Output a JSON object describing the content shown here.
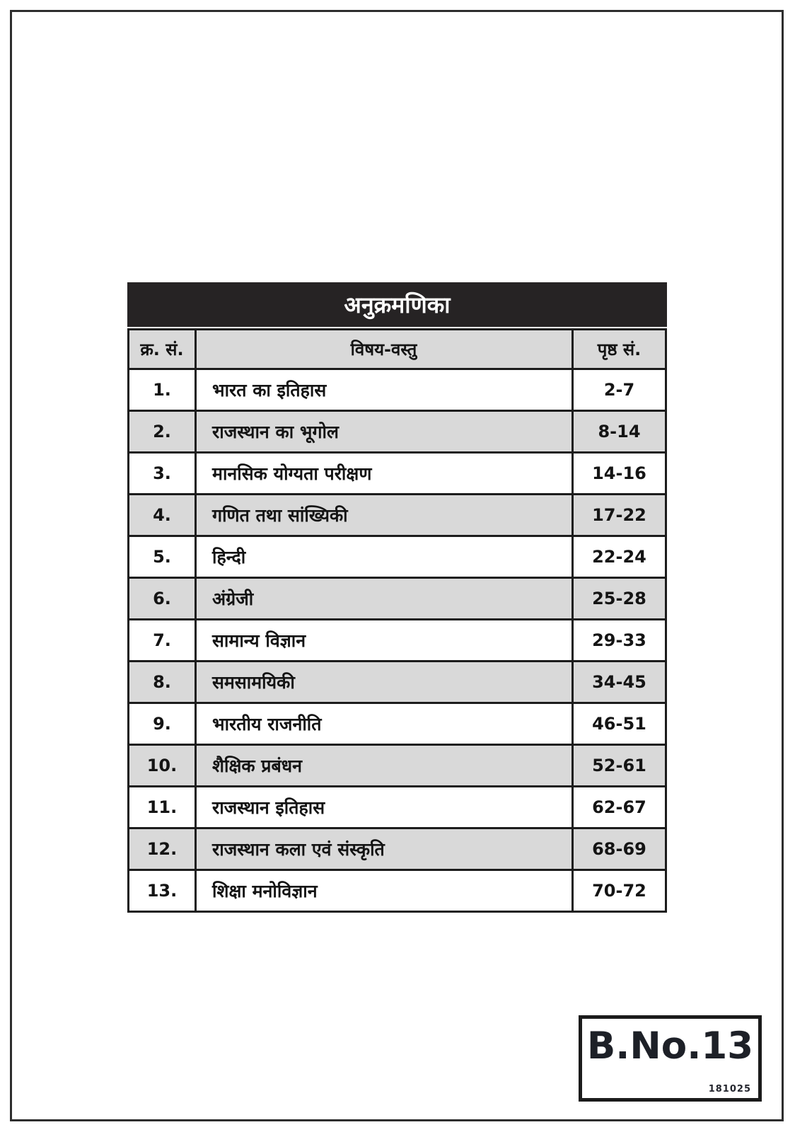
{
  "document": {
    "title": "अनुक्रमणिका",
    "table": {
      "headers": {
        "sno": "क्र. सं.",
        "subject": "विषय-वस्तु",
        "pages": "पृष्ठ सं."
      },
      "rows": [
        {
          "sno": "1.",
          "subject": "भारत का इतिहास",
          "pages": "2-7"
        },
        {
          "sno": "2.",
          "subject": "राजस्थान का भूगोल",
          "pages": "8-14"
        },
        {
          "sno": "3.",
          "subject": "मानसिक योग्यता परीक्षण",
          "pages": "14-16"
        },
        {
          "sno": "4.",
          "subject": "गणित तथा सांख्यिकी",
          "pages": "17-22"
        },
        {
          "sno": "5.",
          "subject": "हिन्दी",
          "pages": "22-24"
        },
        {
          "sno": "6.",
          "subject": "अंग्रेजी",
          "pages": "25-28"
        },
        {
          "sno": "7.",
          "subject": "सामान्य विज्ञान",
          "pages": "29-33"
        },
        {
          "sno": "8.",
          "subject": "समसामयिकी",
          "pages": "34-45"
        },
        {
          "sno": "9.",
          "subject": "भारतीय राजनीति",
          "pages": "46-51"
        },
        {
          "sno": "10.",
          "subject": "शैक्षिक प्रबंधन",
          "pages": "52-61"
        },
        {
          "sno": "11.",
          "subject": "राजस्थान इतिहास",
          "pages": "62-67"
        },
        {
          "sno": "12.",
          "subject": "राजस्थान कला एवं संस्कृति",
          "pages": "68-69"
        },
        {
          "sno": "13.",
          "subject": "शिक्षा मनोविज्ञान",
          "pages": "70-72"
        }
      ]
    },
    "book_number_box": {
      "label": "B.No.13",
      "code": "181025"
    },
    "colors": {
      "title_bar": "#262324",
      "row_alt": "#d9d9d9",
      "grid_border": "#1c1c1c"
    }
  }
}
